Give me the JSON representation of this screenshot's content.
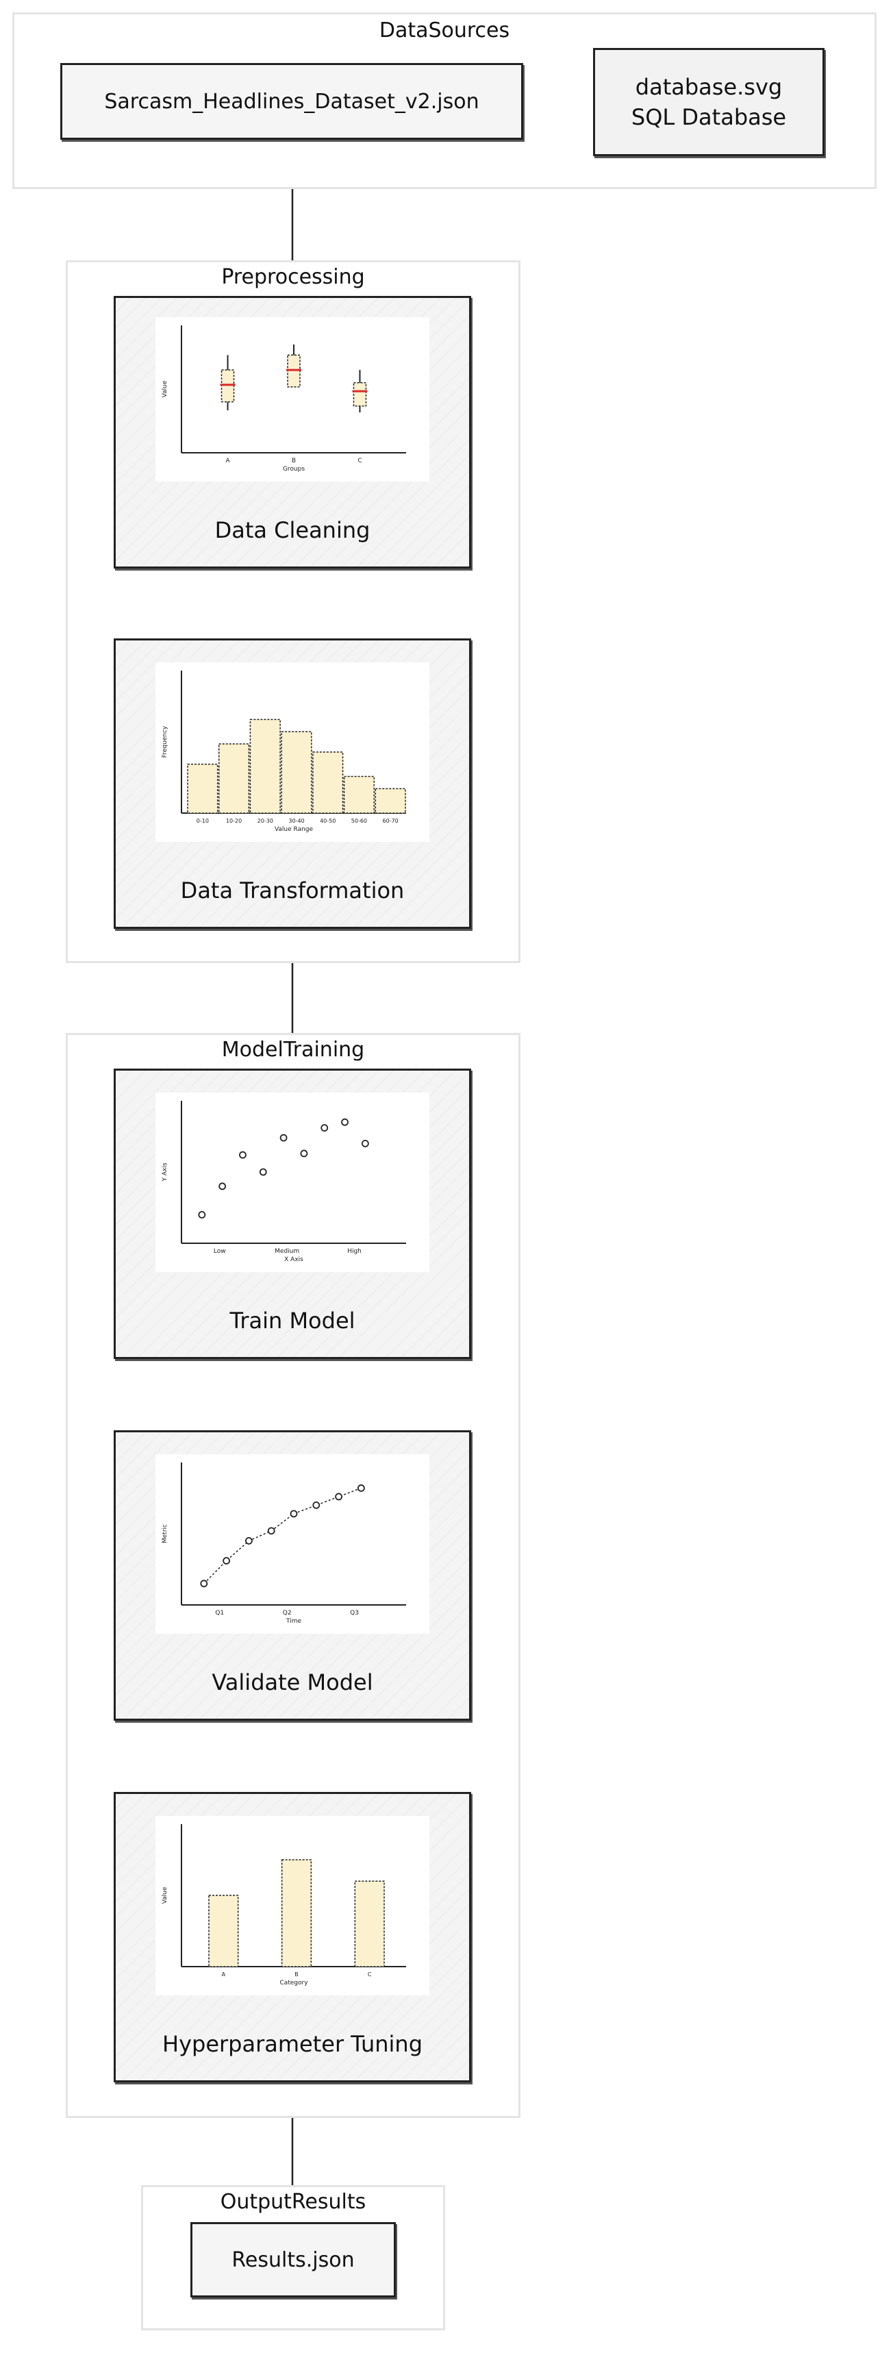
{
  "clusters": {
    "datasources": "DataSources",
    "preprocessing": "Preprocessing",
    "modeltraining": "ModelTraining",
    "outputresults": "OutputResults"
  },
  "nodes": {
    "dataset_file": "Sarcasm_Headlines_Dataset_v2.json",
    "database_icon": "database.svg",
    "database_label": "SQL Database",
    "data_cleaning": "Data Cleaning",
    "data_transformation": "Data Transformation",
    "train_model": "Train Model",
    "validate_model": "Validate Model",
    "hyperparameter_tuning": "Hyperparameter Tuning",
    "results_file": "Results.json"
  },
  "colors": {
    "fill": "#fbf1cf",
    "median": "#d92b2b",
    "line": "#222222"
  },
  "chart_data": [
    {
      "type": "box",
      "categories": [
        "A",
        "B",
        "C"
      ],
      "boxes": [
        {
          "whisker_low": 2.0,
          "q1": 2.4,
          "median": 3.2,
          "q3": 3.9,
          "whisker_high": 4.6
        },
        {
          "whisker_low": 3.1,
          "q1": 3.1,
          "median": 3.9,
          "q3": 4.6,
          "whisker_high": 5.1
        },
        {
          "whisker_low": 1.9,
          "q1": 2.2,
          "median": 2.9,
          "q3": 3.3,
          "whisker_high": 3.9
        }
      ],
      "xlabel": "Groups",
      "ylabel": "Value",
      "ylim": [
        0,
        6
      ]
    },
    {
      "type": "bar",
      "categories": [
        "0-10",
        "10-20",
        "20-30",
        "30-40",
        "40-50",
        "50-60",
        "60-70"
      ],
      "values": [
        12,
        17,
        23,
        20,
        15,
        9,
        6
      ],
      "xlabel": "Value Range",
      "ylabel": "Frequency",
      "ylim": [
        0,
        35
      ]
    },
    {
      "type": "scatter",
      "x": [
        1,
        1.5,
        2,
        2.5,
        3,
        3.5,
        4,
        4.5,
        5
      ],
      "y": [
        2,
        4,
        6.2,
        5,
        7.4,
        6.3,
        8.1,
        8.5,
        7
      ],
      "xticks": [
        "Low",
        "Medium",
        "High"
      ],
      "xlabel": "X Axis",
      "ylabel": "Y Axis",
      "xlim": [
        0.5,
        6
      ],
      "ylim": [
        0,
        10
      ]
    },
    {
      "type": "line",
      "x": [
        1,
        1.5,
        2,
        2.5,
        3,
        3.5,
        4,
        4.5
      ],
      "y": [
        1.5,
        3.1,
        4.5,
        5.2,
        6.4,
        7.0,
        7.6,
        8.2
      ],
      "xticks": [
        "Q1",
        "Q2",
        "Q3"
      ],
      "xlabel": "Time",
      "ylabel": "Metric",
      "xlim": [
        0.5,
        5.5
      ],
      "ylim": [
        0,
        10
      ]
    },
    {
      "type": "bar",
      "categories": [
        "A",
        "B",
        "C"
      ],
      "values": [
        5,
        7.5,
        6
      ],
      "xlabel": "Category",
      "ylabel": "Value",
      "ylim": [
        0,
        10
      ]
    }
  ]
}
